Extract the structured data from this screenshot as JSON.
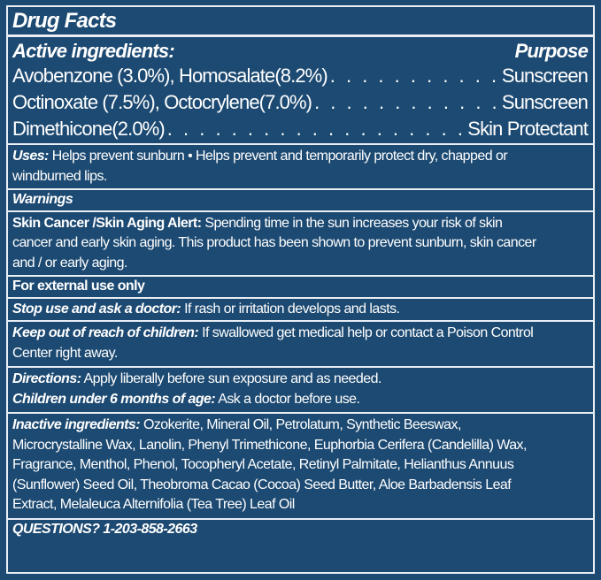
{
  "title": "Drug Facts",
  "active": {
    "heading": "Active ingredients:",
    "purpose_heading": "Purpose",
    "rows": [
      {
        "ingredient": "Avobenzone (3.0%), Homosalate(8.2%)",
        "purpose": "Sunscreen"
      },
      {
        "ingredient": "Octinoxate (7.5%), Octocrylene(7.0%)",
        "purpose": "Sunscreen"
      },
      {
        "ingredient": "Dimethicone(2.0%)",
        "purpose": "Skin Protectant"
      }
    ]
  },
  "uses": {
    "label": "Uses:",
    "lines": [
      " Helps prevent sunburn • Helps prevent and temporarily protect dry, chapped or",
      "windburned lips."
    ]
  },
  "warnings": {
    "heading": "Warnings"
  },
  "skin_alert": {
    "label": "Skin Cancer /Skin Aging Alert:",
    "lines": [
      " Spending time in the sun increases your risk of skin",
      "cancer and early skin aging. This product has been shown to prevent sunburn, skin cancer",
      "and / or early aging."
    ]
  },
  "external": "For external use only",
  "stop_use": {
    "label": "Stop use and ask a doctor:",
    "text": " If rash or irritation develops and lasts."
  },
  "keep_out": {
    "label": "Keep out of reach of children:",
    "lines": [
      " If swallowed get medical help or contact a Poison Control",
      "Center right away."
    ]
  },
  "directions": {
    "label": "Directions:",
    "text": " Apply liberally before sun exposure and as needed.",
    "children_label": "Children under 6 months of age:",
    "children_text": " Ask a doctor before use."
  },
  "inactive": {
    "label": "Inactive ingredients:",
    "lines": [
      " Ozokerite, Mineral Oil, Petrolatum, Synthetic Beeswax,",
      "Microcrystalline Wax, Lanolin, Phenyl Trimethicone, Euphorbia Cerifera (Candelilla) Wax,",
      "Fragrance, Menthol, Phenol, Tocopheryl Acetate, Retinyl Palmitate, Helianthus Annuus",
      "(Sunflower) Seed Oil, Theobroma Cacao (Cocoa) Seed Butter, Aloe Barbadensis Leaf",
      "Extract, Melaleuca Alternifolia (Tea Tree) Leaf Oil"
    ]
  },
  "questions": "QUESTIONS? 1-203-858-2663",
  "colors": {
    "background": "#1d4a72",
    "text": "#ffffff",
    "rule": "#e8eef4"
  }
}
